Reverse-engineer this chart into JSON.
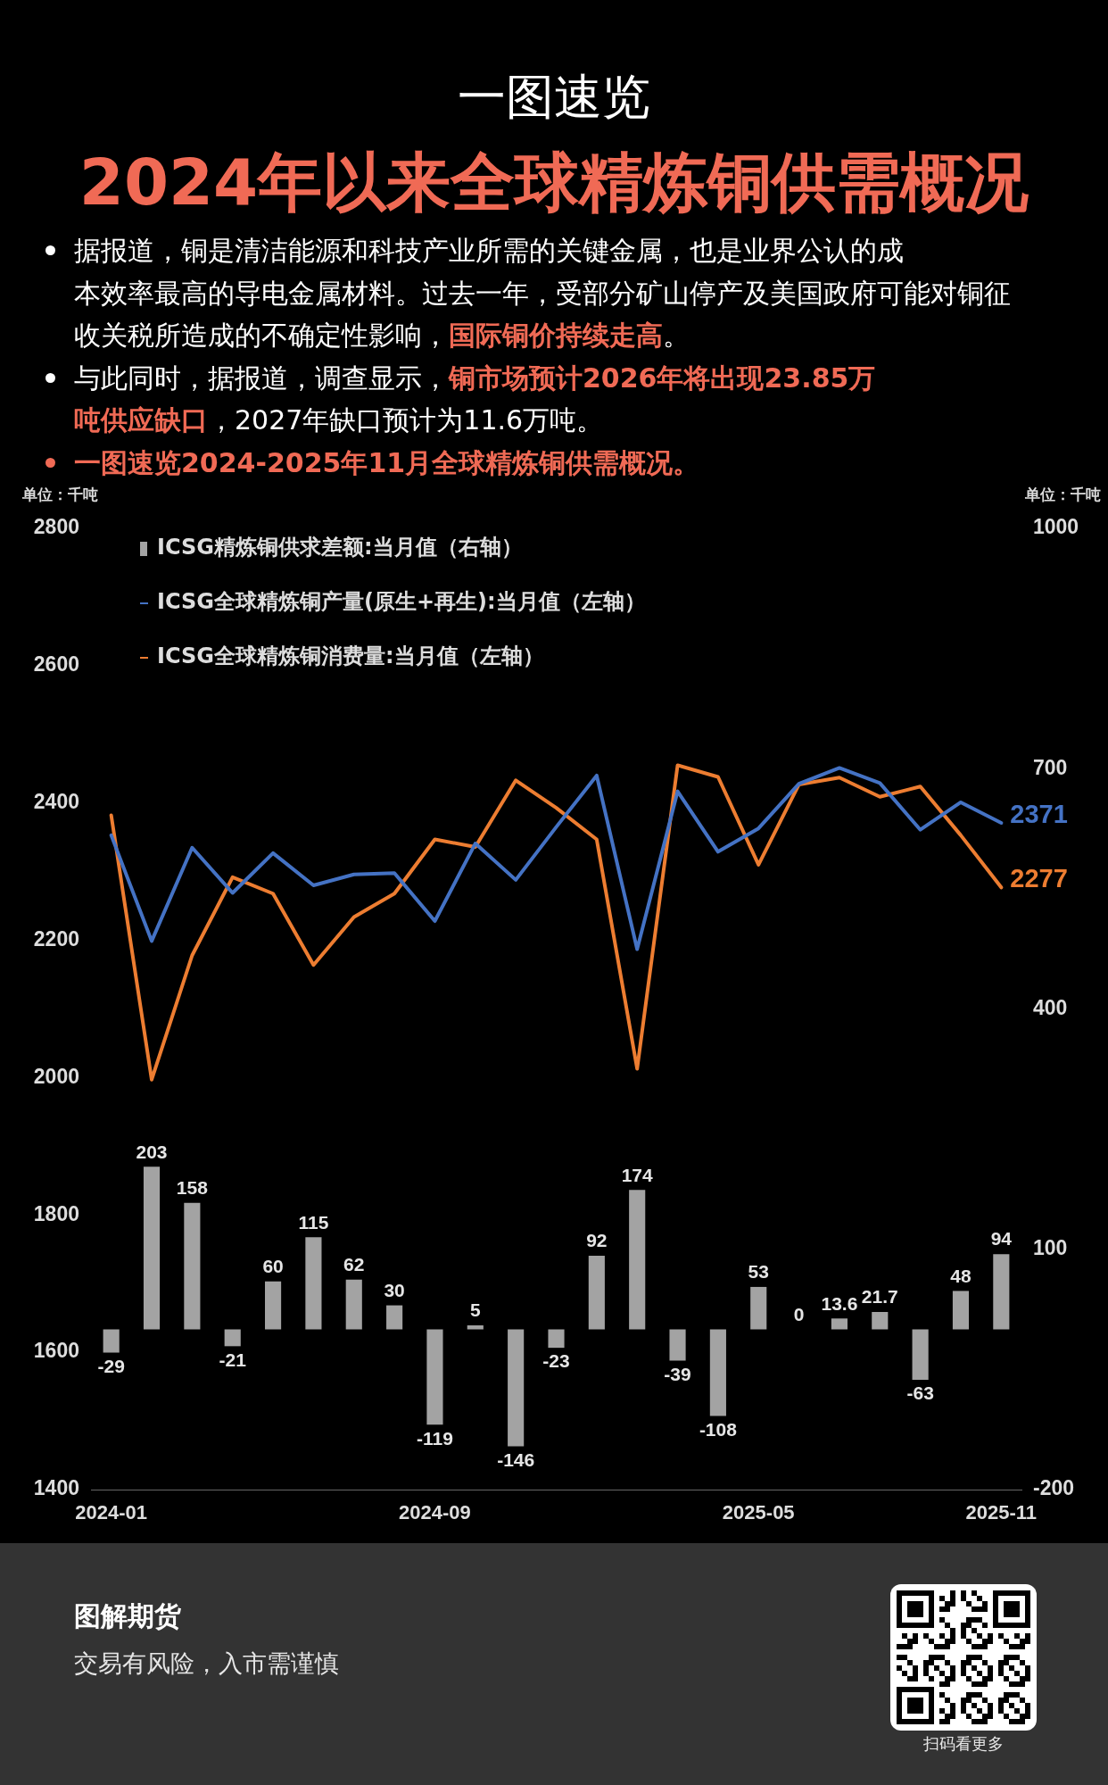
{
  "chart_data": {
    "type": "bar",
    "subtitle": "一图速览",
    "title": "2024年以来全球精炼铜供需概况",
    "ylabel": "单位：千吨",
    "y2label": "单位：千吨",
    "categories": [
      "2024-01",
      null,
      null,
      null,
      null,
      null,
      null,
      null,
      "2024-09",
      null,
      null,
      null,
      null,
      null,
      null,
      null,
      "2025-05",
      null,
      null,
      null,
      null,
      null,
      "2025-11"
    ],
    "series": [
      {
        "name": "ICSG精炼铜供求差额:当月值（右轴）",
        "axis": "y2",
        "color": "#a3a3a3",
        "values": [
          -29,
          203,
          158,
          -21,
          60,
          115,
          62,
          30,
          -119,
          5,
          -146,
          -23,
          92,
          174,
          -39,
          -108,
          53,
          0,
          13.6,
          21.7,
          -63,
          48,
          94
        ],
        "value_labels": [
          "-29",
          "203",
          "158",
          "-21",
          "60",
          "115",
          "62",
          "30",
          "-119",
          "5",
          "-146",
          "-23",
          "92",
          "174",
          "-39",
          "-108",
          "53",
          "0",
          "13.6",
          "21.7",
          "-63",
          "48",
          "94"
        ]
      },
      {
        "name": "ICSG全球精炼铜产量(原生+再生):当月值（左轴）",
        "type": "line",
        "color": "#4472c4",
        "values": [
          2353,
          2199,
          2335,
          2269,
          2327,
          2280,
          2296,
          2298,
          2228,
          2341,
          2288,
          2365,
          2440,
          2187,
          2417,
          2329,
          2363,
          2428,
          2451,
          2429,
          2361,
          2401,
          2371
        ],
        "value_labels": [
          null,
          null,
          null,
          null,
          null,
          null,
          null,
          null,
          null,
          null,
          null,
          null,
          null,
          null,
          null,
          null,
          null,
          null,
          null,
          null,
          null,
          null,
          "2371"
        ]
      },
      {
        "name": "ICSG全球精炼铜消费量:当月值（左轴）",
        "type": "line",
        "color": "#ed7d31",
        "values": [
          2382,
          1997,
          2178,
          2292,
          2268,
          2164,
          2234,
          2268,
          2347,
          2336,
          2433,
          2393,
          2347,
          2013,
          2455,
          2438,
          2310,
          2427,
          2437,
          2409,
          2424,
          2353,
          2277
        ],
        "value_labels": [
          null,
          null,
          null,
          null,
          null,
          null,
          null,
          null,
          null,
          null,
          null,
          null,
          null,
          null,
          null,
          null,
          null,
          null,
          null,
          null,
          null,
          null,
          "2277"
        ]
      }
    ],
    "ylim": [
      1400,
      2800
    ],
    "yticks": [
      1400,
      1600,
      1800,
      2000,
      2200,
      2400,
      2600,
      2800
    ],
    "y2lim": [
      -200,
      1000
    ],
    "y2ticks": [
      -200,
      100,
      400,
      700,
      1000
    ],
    "legend": "top left",
    "annotations": [
      "据报道，铜是清洁能源和科技产业所需的关键金属，也是业界公认的成",
      "本效率最高的导电金属材料。过去一年，受部分矿山停产及美国政府可能对铜征",
      "收关税所造成的不确定性影响，",
      "国际铜价持续走高",
      "。",
      "与此同时，据报道，调查显示，",
      "铜市场预计2026年将出现23.85万",
      "吨供应缺口",
      "，2027年缺口预计为11.6万吨。",
      "一图速览2024-2025年11月全球精炼铜供需概况。",
      "图解期货",
      "交易有风险，入市需谨慎",
      "扫码看更多"
    ]
  }
}
